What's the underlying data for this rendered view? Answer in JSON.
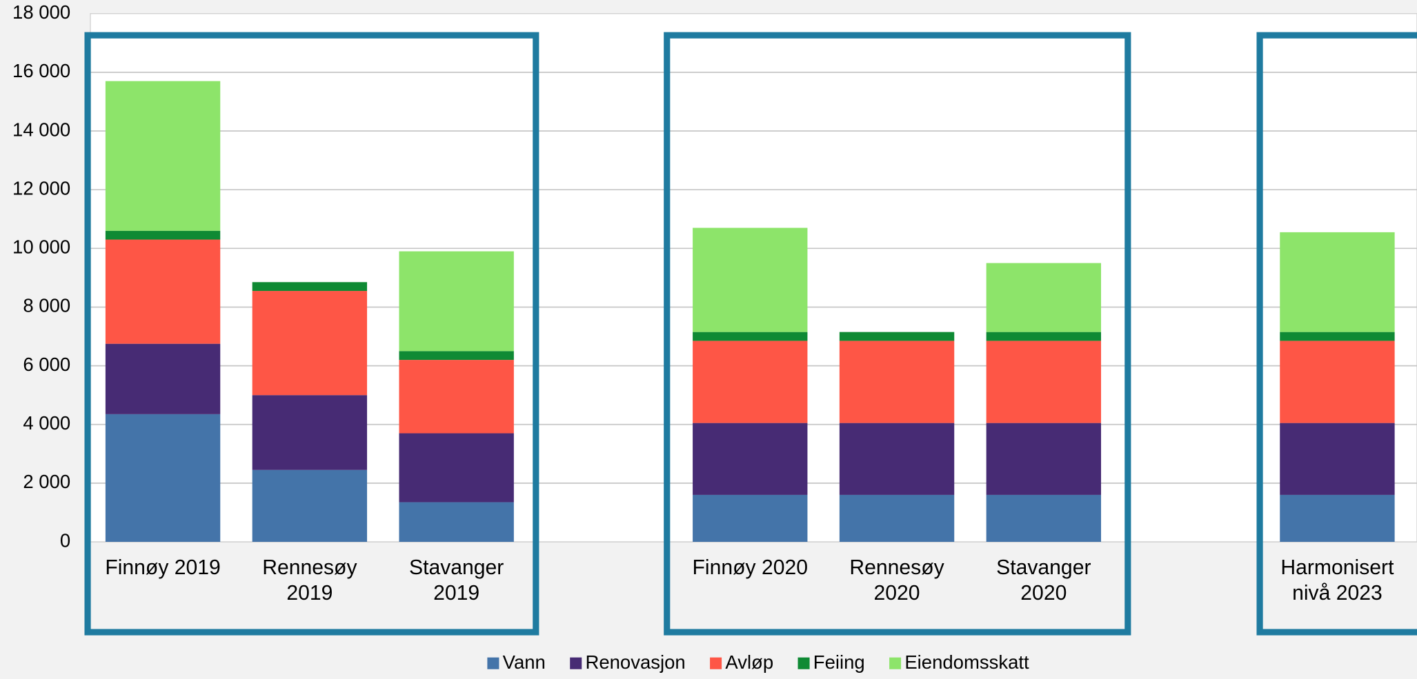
{
  "chart_data": {
    "type": "stacked-bar",
    "categories": [
      "Finnøy 2019",
      "Rennesøy 2019",
      "Stavanger 2019",
      null,
      "Finnøy 2020",
      "Rennesøy 2020",
      "Stavanger 2020",
      null,
      "Harmonisert nivå 2023"
    ],
    "series": [
      {
        "name": "Vann",
        "color": "#4474a9",
        "values": [
          4350,
          2450,
          1350,
          null,
          1600,
          1600,
          1600,
          null,
          1600
        ]
      },
      {
        "name": "Renovasjon",
        "color": "#472b74",
        "values": [
          2400,
          2550,
          2350,
          null,
          2450,
          2450,
          2450,
          null,
          2450
        ]
      },
      {
        "name": "Avløp",
        "color": "#fe5646",
        "values": [
          3550,
          3550,
          2500,
          null,
          2800,
          2800,
          2800,
          null,
          2800
        ]
      },
      {
        "name": "Feiing",
        "color": "#0f8a34",
        "values": [
          300,
          300,
          300,
          null,
          300,
          300,
          300,
          null,
          300
        ]
      },
      {
        "name": "Eiendomsskatt",
        "color": "#8de46a",
        "values": [
          5100,
          0,
          3400,
          null,
          3550,
          0,
          2350,
          null,
          3400
        ]
      }
    ],
    "ylim": [
      0,
      18000
    ],
    "yticks": [
      0,
      {
        "value": 2000,
        "label": "2 000"
      },
      {
        "value": 4000,
        "label": "4 000"
      },
      {
        "value": 6000,
        "label": "6 000"
      },
      {
        "value": 8000,
        "label": "8 000"
      },
      {
        "value": 10000,
        "label": "10 000"
      },
      {
        "value": 12000,
        "label": "12 000"
      },
      {
        "value": 14000,
        "label": "14 000"
      },
      {
        "value": 16000,
        "label": "16 000"
      },
      {
        "value": 18000,
        "label": "18 000"
      }
    ],
    "grid": true,
    "legend": "bottom"
  }
}
